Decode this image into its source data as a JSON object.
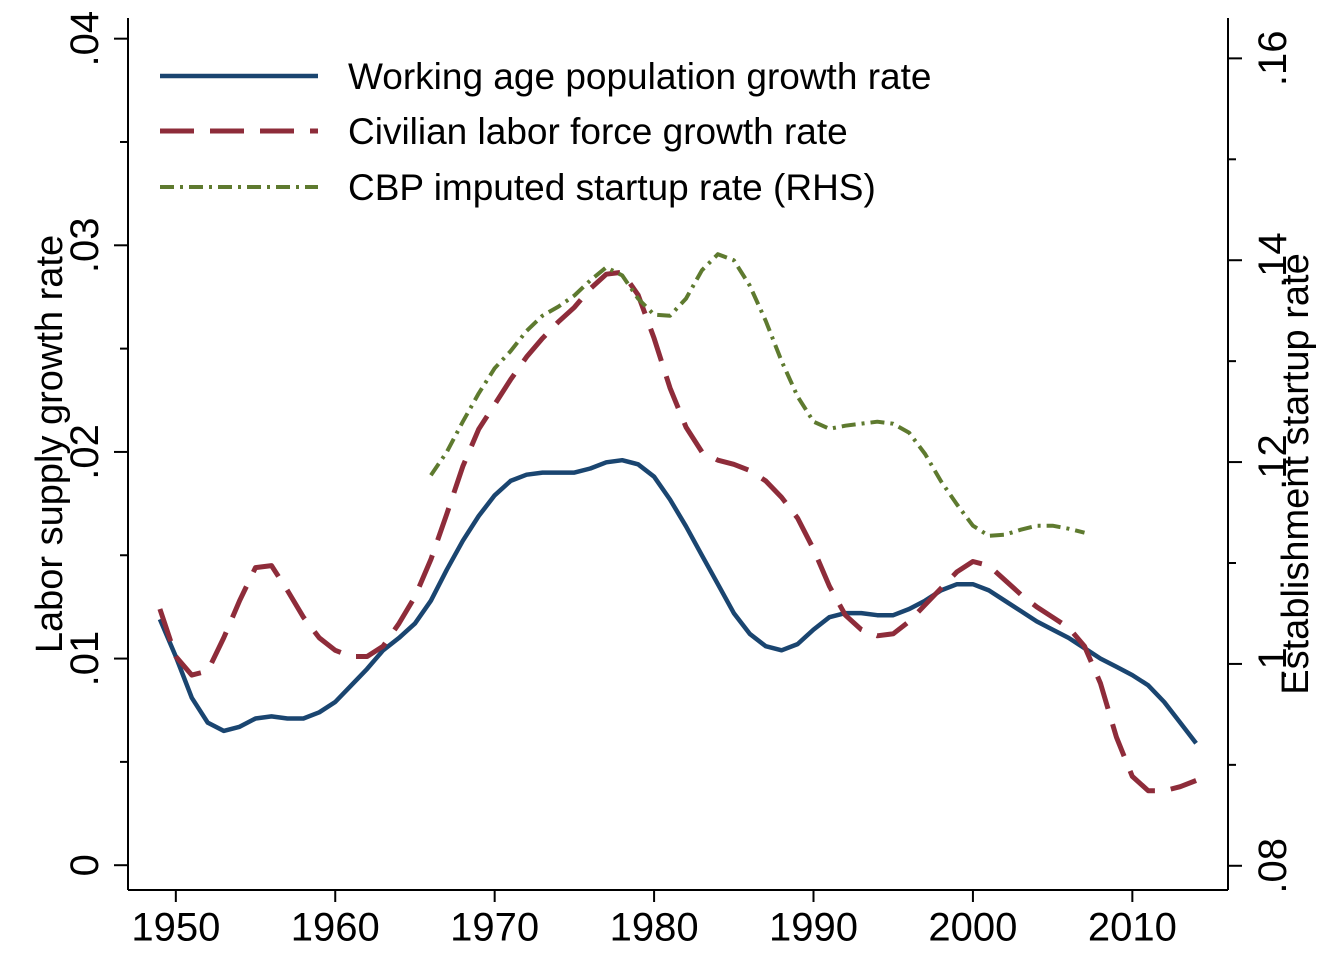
{
  "chart_data": {
    "type": "line",
    "title": "",
    "xlabel": "",
    "ylabel": "Labor supply growth rate",
    "y2label": "Establishment startup rate",
    "xlim": [
      1947,
      2016
    ],
    "ylim": [
      -0.0012,
      0.041
    ],
    "y2lim": [
      0.0776,
      0.164
    ],
    "x_ticks": [
      1950,
      1960,
      1970,
      1980,
      1990,
      2000,
      2010
    ],
    "x_tick_labels": [
      "1950",
      "1960",
      "1970",
      "1980",
      "1990",
      "2000",
      "2010"
    ],
    "y_ticks": [
      0,
      0.01,
      0.02,
      0.03,
      0.04
    ],
    "y_tick_labels": [
      "0",
      ".01",
      ".02",
      ".03",
      ".04"
    ],
    "y_minor_ticks": [
      0.005,
      0.015,
      0.025,
      0.035
    ],
    "y2_ticks": [
      0.08,
      0.1,
      0.12,
      0.14,
      0.16
    ],
    "y2_tick_labels": [
      ".08",
      ".1",
      ".12",
      ".14",
      ".16"
    ],
    "y2_minor_ticks": [
      0.09,
      0.11,
      0.13,
      0.15
    ],
    "grid": false,
    "legend_position": "top-left",
    "series": [
      {
        "name": "Working age population growth rate",
        "axis": "left",
        "color": "#1a4570",
        "style": "solid",
        "x": [
          1949,
          1950,
          1951,
          1952,
          1953,
          1954,
          1955,
          1956,
          1957,
          1958,
          1959,
          1960,
          1961,
          1962,
          1963,
          1964,
          1965,
          1966,
          1967,
          1968,
          1969,
          1970,
          1971,
          1972,
          1973,
          1974,
          1975,
          1976,
          1977,
          1978,
          1979,
          1980,
          1981,
          1982,
          1983,
          1984,
          1985,
          1986,
          1987,
          1988,
          1989,
          1990,
          1991,
          1992,
          1993,
          1994,
          1995,
          1996,
          1997,
          1998,
          1999,
          2000,
          2001,
          2002,
          2003,
          2004,
          2005,
          2006,
          2007,
          2008,
          2009,
          2010,
          2011,
          2012,
          2013,
          2014
        ],
        "values": [
          0.0119,
          0.0101,
          0.0081,
          0.0069,
          0.0065,
          0.0067,
          0.0071,
          0.0072,
          0.0071,
          0.0071,
          0.0074,
          0.0079,
          0.0087,
          0.0095,
          0.0104,
          0.011,
          0.0117,
          0.0128,
          0.0143,
          0.0157,
          0.0169,
          0.0179,
          0.0186,
          0.0189,
          0.019,
          0.019,
          0.019,
          0.0192,
          0.0195,
          0.0196,
          0.0194,
          0.0188,
          0.0177,
          0.0164,
          0.015,
          0.0136,
          0.0122,
          0.0112,
          0.0106,
          0.0104,
          0.0107,
          0.0114,
          0.012,
          0.0122,
          0.0122,
          0.0121,
          0.0121,
          0.0124,
          0.0128,
          0.0133,
          0.0136,
          0.0136,
          0.0133,
          0.0128,
          0.0123,
          0.0118,
          0.0114,
          0.011,
          0.0105,
          0.01,
          0.0096,
          0.0092,
          0.0087,
          0.0079,
          0.0069,
          0.0059
        ]
      },
      {
        "name": "Civilian labor force growth rate",
        "axis": "left",
        "color": "#8e2c3a",
        "style": "dashed",
        "x": [
          1949,
          1950,
          1951,
          1952,
          1953,
          1954,
          1955,
          1956,
          1957,
          1958,
          1959,
          1960,
          1961,
          1962,
          1963,
          1964,
          1965,
          1966,
          1967,
          1968,
          1969,
          1970,
          1971,
          1972,
          1973,
          1974,
          1975,
          1976,
          1977,
          1978,
          1979,
          1980,
          1981,
          1982,
          1983,
          1984,
          1985,
          1986,
          1987,
          1988,
          1989,
          1990,
          1991,
          1992,
          1993,
          1994,
          1995,
          1996,
          1997,
          1998,
          1999,
          2000,
          2001,
          2002,
          2003,
          2004,
          2005,
          2006,
          2007,
          2008,
          2009,
          2010,
          2011,
          2012,
          2013,
          2014
        ],
        "values": [
          0.0124,
          0.0101,
          0.0092,
          0.0094,
          0.011,
          0.0128,
          0.0144,
          0.0145,
          0.0133,
          0.012,
          0.011,
          0.0104,
          0.0101,
          0.0101,
          0.0106,
          0.0117,
          0.013,
          0.0148,
          0.017,
          0.0193,
          0.0211,
          0.0223,
          0.0235,
          0.0246,
          0.0255,
          0.0263,
          0.027,
          0.0279,
          0.0286,
          0.0287,
          0.0276,
          0.0255,
          0.0231,
          0.0212,
          0.02,
          0.0196,
          0.0194,
          0.0191,
          0.0186,
          0.0178,
          0.0168,
          0.0153,
          0.0135,
          0.0121,
          0.0114,
          0.0111,
          0.0112,
          0.0118,
          0.0126,
          0.0134,
          0.0142,
          0.0147,
          0.0145,
          0.0138,
          0.0131,
          0.0125,
          0.012,
          0.0115,
          0.0106,
          0.0088,
          0.0062,
          0.0043,
          0.0036,
          0.0036,
          0.0038,
          0.0041
        ]
      },
      {
        "name": "CBP imputed startup rate (RHS)",
        "axis": "right",
        "color": "#5e7a2f",
        "style": "dashdot",
        "x": [
          1966,
          1967,
          1968,
          1969,
          1970,
          1971,
          1972,
          1973,
          1974,
          1975,
          1976,
          1977,
          1978,
          1979,
          1980,
          1981,
          1982,
          1983,
          1984,
          1985,
          1986,
          1987,
          1988,
          1989,
          1990,
          1991,
          1992,
          1993,
          1994,
          1995,
          1996,
          1997,
          1998,
          1999,
          2000,
          2001,
          2002,
          2003,
          2004,
          2005,
          2006,
          2007
        ],
        "values": [
          0.1187,
          0.121,
          0.124,
          0.1268,
          0.1293,
          0.131,
          0.133,
          0.1345,
          0.1354,
          0.1365,
          0.138,
          0.1393,
          0.1385,
          0.1362,
          0.1346,
          0.1345,
          0.1362,
          0.139,
          0.1406,
          0.14,
          0.1375,
          0.134,
          0.13,
          0.1265,
          0.124,
          0.1233,
          0.1236,
          0.1238,
          0.124,
          0.1238,
          0.1229,
          0.1208,
          0.1181,
          0.1158,
          0.1137,
          0.1127,
          0.1128,
          0.1133,
          0.1137,
          0.1137,
          0.1134,
          0.113
        ]
      }
    ]
  }
}
